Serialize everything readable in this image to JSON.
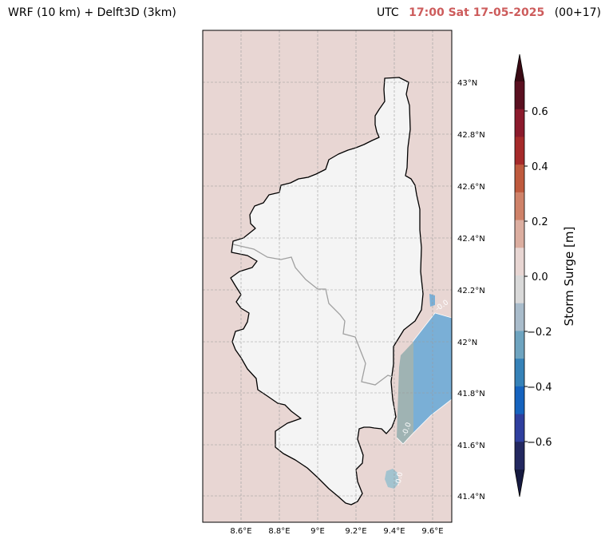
{
  "header": {
    "left_title": "WRF (10 km) + Delft3D (3km)",
    "utc_label": "UTC",
    "valid_time": "17:00 Sat 17-05-2025",
    "lead_time": "(00+17)",
    "time_color": "#cd5c5c"
  },
  "map": {
    "background_color": "#e8d6d3",
    "land_color": "#f4f4f4",
    "lon_ticks": [
      "8.6°E",
      "8.8°E",
      "9°E",
      "9.2°E",
      "9.4°E",
      "9.6°E"
    ],
    "lat_ticks": [
      "43°N",
      "42.8°N",
      "42.6°N",
      "42.4°N",
      "42.2°N",
      "42°N",
      "41.8°N",
      "41.6°N",
      "41.4°N"
    ],
    "contour_labels": [
      "-0.0",
      "-0.0",
      "-0.0"
    ],
    "surge_colors": {
      "blue": "#7aafd6",
      "teal": "#9fb3b3",
      "light": "#a3c3cf"
    }
  },
  "colorbar": {
    "label": "Storm Surge [m]",
    "ticks": [
      "0.6",
      "0.4",
      "0.2",
      "0.0",
      "−0.2",
      "−0.4",
      "−0.6"
    ],
    "colors": [
      "#3a0a14",
      "#5a1020",
      "#8b1a2c",
      "#a52a2a",
      "#bf5a3e",
      "#cf8269",
      "#dcaea0",
      "#e8d6d3",
      "#d9d9d9",
      "#a9bccb",
      "#6ea4c0",
      "#3682b8",
      "#1663be",
      "#2f3f9e",
      "#232860",
      "#161a40"
    ]
  }
}
